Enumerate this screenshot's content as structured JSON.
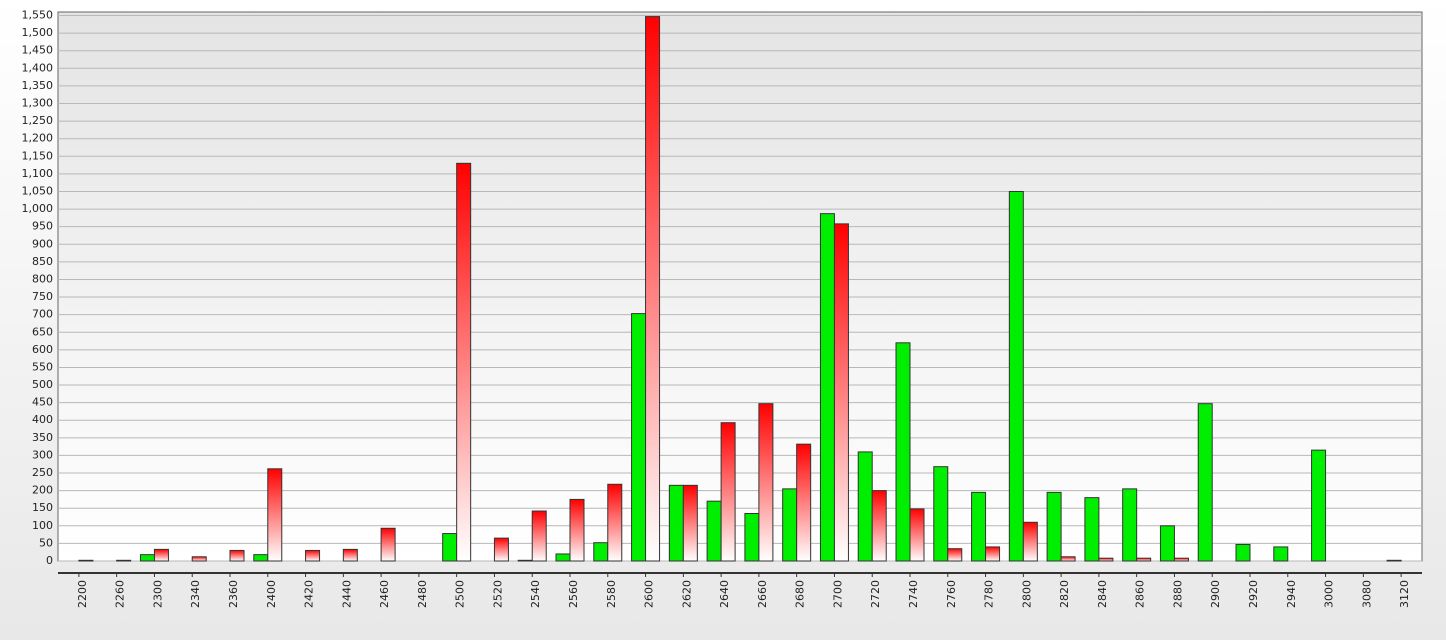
{
  "chart_data": {
    "type": "bar",
    "categories": [
      "2200",
      "2260",
      "2300",
      "2340",
      "2360",
      "2400",
      "2420",
      "2440",
      "2460",
      "2480",
      "2500",
      "2520",
      "2540",
      "2560",
      "2580",
      "2600",
      "2620",
      "2640",
      "2660",
      "2680",
      "2700",
      "2720",
      "2740",
      "2760",
      "2780",
      "2800",
      "2820",
      "2840",
      "2860",
      "2880",
      "2900",
      "2920",
      "2940",
      "3000",
      "3080",
      "3120"
    ],
    "series": [
      {
        "color": "#00ee00",
        "values": [
          0,
          0,
          18,
          0,
          0,
          18,
          0,
          0,
          0,
          0,
          78,
          0,
          2,
          20,
          52,
          703,
          215,
          170,
          135,
          205,
          987,
          310,
          620,
          268,
          195,
          1050,
          195,
          180,
          205,
          100,
          447,
          47,
          40,
          315,
          0,
          2
        ]
      },
      {
        "color": "#ff0000",
        "values": [
          2,
          2,
          33,
          12,
          30,
          262,
          30,
          33,
          93,
          0,
          1130,
          65,
          142,
          175,
          218,
          1547,
          215,
          393,
          447,
          332,
          958,
          200,
          148,
          35,
          40,
          110,
          12,
          8,
          8,
          8,
          0,
          0,
          0,
          0,
          0,
          0
        ]
      }
    ],
    "ylim": [
      0,
      1560
    ],
    "yticks": [
      0,
      50,
      100,
      150,
      200,
      250,
      300,
      350,
      400,
      450,
      500,
      550,
      600,
      650,
      700,
      750,
      800,
      850,
      900,
      950,
      {
        "value": 1000,
        "label": "1,000"
      },
      {
        "value": 1050,
        "label": "1,050"
      },
      {
        "value": 1100,
        "label": "1,100"
      },
      {
        "value": 1150,
        "label": "1,150"
      },
      {
        "value": 1200,
        "label": "1,200"
      },
      {
        "value": 1250,
        "label": "1,250"
      },
      {
        "value": 1300,
        "label": "1,300"
      },
      {
        "value": 1350,
        "label": "1,350"
      },
      {
        "value": 1400,
        "label": "1,400"
      },
      {
        "value": 1450,
        "label": "1,450"
      },
      {
        "value": 1500,
        "label": "1,500"
      },
      {
        "value": 1550,
        "label": "1,550"
      }
    ],
    "grid": true
  }
}
